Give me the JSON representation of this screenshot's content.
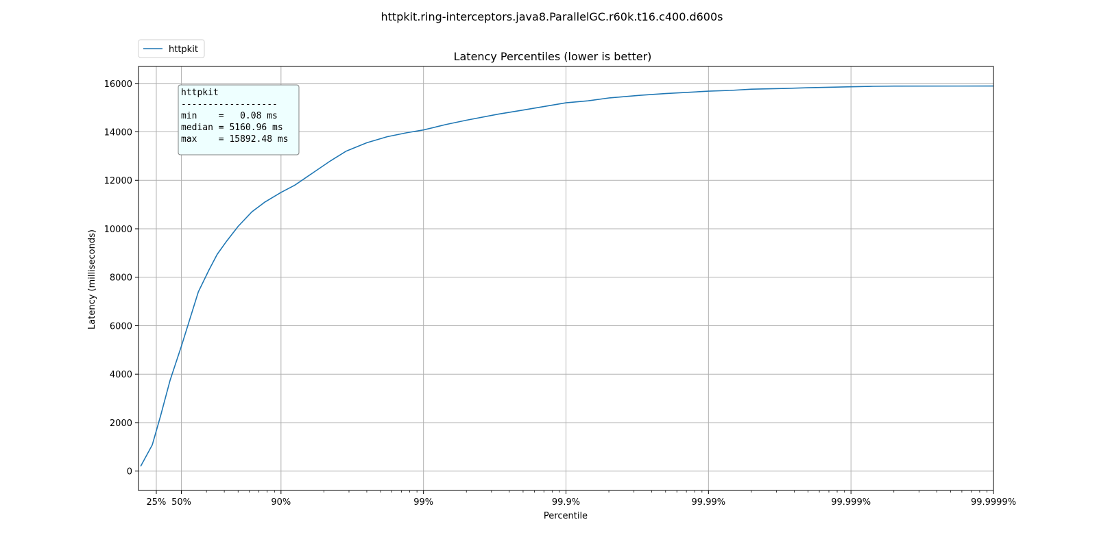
{
  "chart_data": {
    "type": "line",
    "suptitle": "httpkit.ring-interceptors.java8.ParallelGC.r60k.t16.c400.d600s",
    "title": "Latency Percentiles (lower is better)",
    "xlabel": "Percentile",
    "ylabel": "Latency (milliseconds)",
    "xscale": "log of 1/(1-percentile)",
    "x_ticks": [
      {
        "value": 0.25,
        "label": "25%"
      },
      {
        "value": 0.5,
        "label": "50%"
      },
      {
        "value": 0.9,
        "label": "90%"
      },
      {
        "value": 0.99,
        "label": "99%"
      },
      {
        "value": 0.999,
        "label": "99.9%"
      },
      {
        "value": 0.9999,
        "label": "99.99%"
      },
      {
        "value": 0.99999,
        "label": "99.999%"
      },
      {
        "value": 0.999999,
        "label": "99.9999%"
      }
    ],
    "xlim": [
      0.0,
      0.999999
    ],
    "y_ticks": [
      0,
      2000,
      4000,
      6000,
      8000,
      10000,
      12000,
      14000,
      16000
    ],
    "ylim": [
      -800,
      16700
    ],
    "grid": true,
    "legend": {
      "position": "top-left, above plot",
      "entries": [
        "httpkit"
      ]
    },
    "stats_box": {
      "lines": [
        "httpkit",
        "------------------",
        "min    =   0.08 ms",
        "median = 5160.96 ms",
        "max    = 15892.48 ms"
      ]
    },
    "series": [
      {
        "name": "httpkit",
        "color": "#1f77b4",
        "points": [
          [
            0.035,
            200
          ],
          [
            0.2,
            1080
          ],
          [
            0.3,
            2280
          ],
          [
            0.4,
            3750
          ],
          [
            0.5,
            5161
          ],
          [
            0.56,
            6200
          ],
          [
            0.62,
            7400
          ],
          [
            0.68,
            8300
          ],
          [
            0.72,
            8950
          ],
          [
            0.76,
            9500
          ],
          [
            0.8,
            10100
          ],
          [
            0.84,
            10700
          ],
          [
            0.87,
            11100
          ],
          [
            0.9,
            11500
          ],
          [
            0.92,
            11800
          ],
          [
            0.94,
            12300
          ],
          [
            0.955,
            12800
          ],
          [
            0.965,
            13200
          ],
          [
            0.975,
            13550
          ],
          [
            0.982,
            13800
          ],
          [
            0.987,
            13970
          ],
          [
            0.99,
            14080
          ],
          [
            0.993,
            14300
          ],
          [
            0.995,
            14480
          ],
          [
            0.997,
            14730
          ],
          [
            0.998,
            14900
          ],
          [
            0.999,
            15200
          ],
          [
            0.9993,
            15280
          ],
          [
            0.9995,
            15400
          ],
          [
            0.9997,
            15510
          ],
          [
            0.9998,
            15580
          ],
          [
            0.9999,
            15680
          ],
          [
            0.99993,
            15710
          ],
          [
            0.99995,
            15760
          ],
          [
            0.99997,
            15790
          ],
          [
            0.99998,
            15820
          ],
          [
            0.99999,
            15860
          ],
          [
            0.999993,
            15880
          ],
          [
            0.999995,
            15890
          ],
          [
            0.999999,
            15892.48
          ]
        ]
      }
    ]
  }
}
